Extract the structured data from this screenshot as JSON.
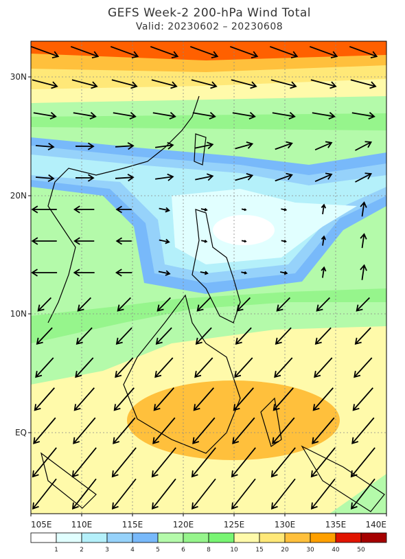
{
  "header": {
    "title": "GEFS Week-2 200-hPa Wind Total",
    "subtitle": "Valid: 20230602 – 20230608"
  },
  "map": {
    "lat_labels": [
      "30N",
      "20N",
      "10N",
      "EQ"
    ],
    "lon_labels": [
      "105E",
      "110E",
      "115E",
      "120E",
      "125E",
      "130E",
      "135E",
      "140E"
    ]
  },
  "colorbar": {
    "labels": [
      "1",
      "2",
      "3",
      "4",
      "5",
      "6",
      "8",
      "10",
      "15",
      "20",
      "30",
      "40",
      "50"
    ],
    "colors": [
      "#ffffff",
      "#e1ffff",
      "#b4f0fa",
      "#96d2fa",
      "#78b9fa",
      "#b4faaa",
      "#96f58c",
      "#78f573",
      "#fffaaa",
      "#ffe878",
      "#ffc03c",
      "#ffa000",
      "#e11400",
      "#a50000"
    ]
  }
}
